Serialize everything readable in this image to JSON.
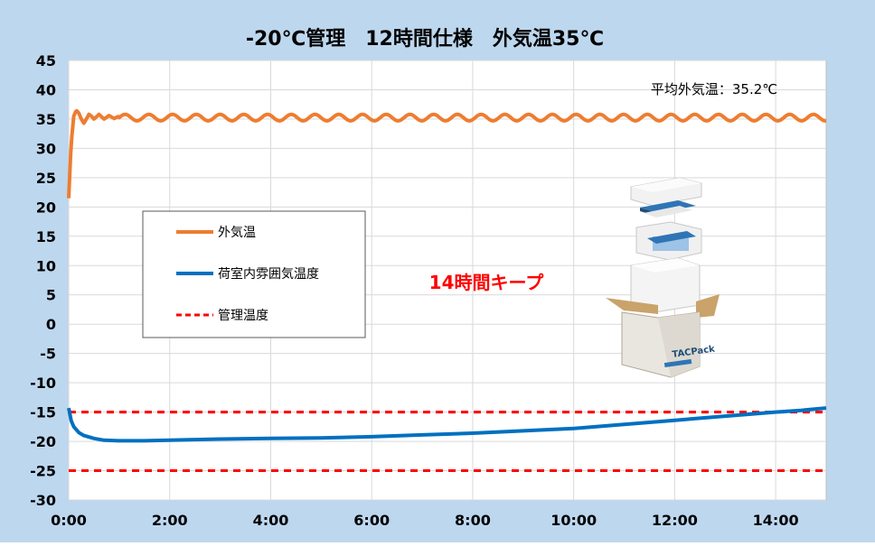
{
  "chart_data": {
    "type": "line",
    "title": "-20℃管理　12時間仕様　外気温35℃",
    "annotation_avg": "平均外気温：35.2℃",
    "annotation_keep": "14時間キープ",
    "product_label": "TACPack",
    "xlim": [
      0,
      15
    ],
    "ylim": [
      -30,
      45
    ],
    "x_ticks": [
      "0:00",
      "2:00",
      "4:00",
      "6:00",
      "8:00",
      "10:00",
      "12:00",
      "14:00"
    ],
    "y_ticks": [
      "45",
      "40",
      "35",
      "30",
      "25",
      "20",
      "15",
      "10",
      "5",
      "0",
      "-5",
      "-10",
      "-15",
      "-20",
      "-25",
      "-30"
    ],
    "legend_position": "left-middle",
    "grid": true,
    "series": [
      {
        "name": "外気温",
        "color": "#ED7D31",
        "style": "solid",
        "x": [
          0,
          0.05,
          0.1,
          0.15,
          0.2,
          0.25,
          0.3,
          0.35,
          0.4,
          0.45,
          0.5,
          0.6,
          0.7,
          0.8,
          0.9,
          1.0,
          1.5,
          2.0,
          2.5,
          3.0,
          3.5,
          4.0,
          4.5,
          5.0,
          5.5,
          6.0,
          6.5,
          7.0,
          7.5,
          8.0,
          8.5,
          9.0,
          9.5,
          10.0,
          10.5,
          11.0,
          11.5,
          12.0,
          12.5,
          13.0,
          13.5,
          14.0,
          14.5,
          15.0
        ],
        "y": [
          21.5,
          31,
          35.5,
          36.5,
          36,
          35,
          34.3,
          35,
          35.8,
          35.5,
          35,
          35.8,
          35,
          35.6,
          35.1,
          35.5,
          35.3,
          35.5,
          35.3,
          35.5,
          35.2,
          35.5,
          35.2,
          35.5,
          35.2,
          35.4,
          35.2,
          35.4,
          35.2,
          35.4,
          35.2,
          35.4,
          35.2,
          35.4,
          35.2,
          35.4,
          35.2,
          35.4,
          35.2,
          35.4,
          35.2,
          35.4,
          35.3,
          35.2
        ]
      },
      {
        "name": "荷室内雰囲気温度",
        "color": "#0070C0",
        "style": "solid",
        "x": [
          0,
          0.05,
          0.1,
          0.2,
          0.3,
          0.5,
          0.7,
          1.0,
          1.5,
          2.0,
          3.0,
          4.0,
          5.0,
          6.0,
          7.0,
          8.0,
          9.0,
          10.0,
          11.0,
          12.0,
          13.0,
          14.0,
          14.5,
          15.0
        ],
        "y": [
          -14.3,
          -16.5,
          -17.5,
          -18.5,
          -19.0,
          -19.5,
          -19.8,
          -19.9,
          -19.9,
          -19.8,
          -19.6,
          -19.5,
          -19.4,
          -19.2,
          -18.9,
          -18.6,
          -18.2,
          -17.8,
          -17.1,
          -16.4,
          -15.7,
          -15.0,
          -14.7,
          -14.3
        ]
      },
      {
        "name": "管理温度",
        "color": "#FF0000",
        "style": "dashed",
        "lines": [
          -15,
          -25
        ]
      }
    ]
  }
}
